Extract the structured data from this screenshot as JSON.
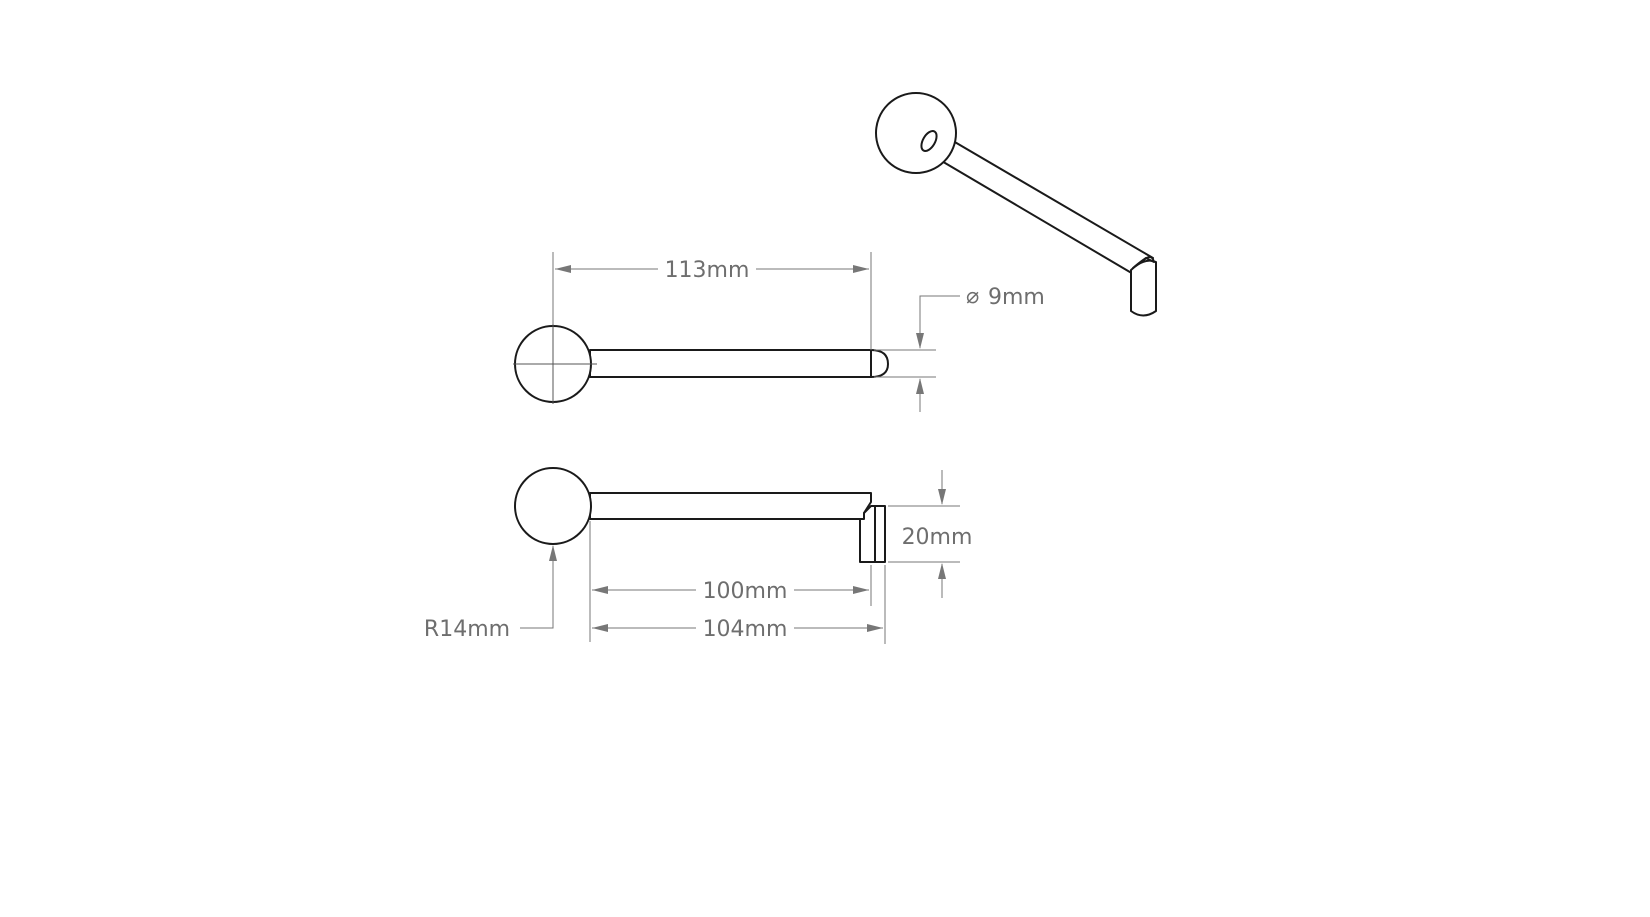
{
  "dimensions": {
    "overall_length": "113mm",
    "rod_diameter": "9mm",
    "diameter_symbol": "⌀",
    "knob_radius": "R14mm",
    "bend_height": "20mm",
    "straight_length": "100mm",
    "total_length": "104mm"
  },
  "colors": {
    "line": "#1a1a1a",
    "dimension": "#6e6e6e",
    "background": "#ffffff"
  }
}
